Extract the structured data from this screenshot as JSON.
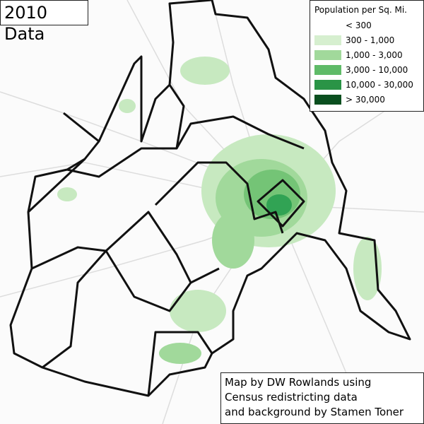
{
  "title": "2010 Data",
  "legend": {
    "title": "Population per Sq. Mi.",
    "items": [
      {
        "label": "< 300",
        "color": "#ffffff"
      },
      {
        "label": "300 - 1,000",
        "color": "#d6efcf"
      },
      {
        "label": "1,000 - 3,000",
        "color": "#a1d99b"
      },
      {
        "label": "3,000 - 10,000",
        "color": "#5fbb68"
      },
      {
        "label": "10,000 - 30,000",
        "color": "#2a9446"
      },
      {
        "label": "> 30,000",
        "color": "#0a4f1f"
      }
    ]
  },
  "credit": [
    "Map by DW Rowlands using",
    "Census redistricting data",
    "and background by Stamen Toner"
  ]
}
